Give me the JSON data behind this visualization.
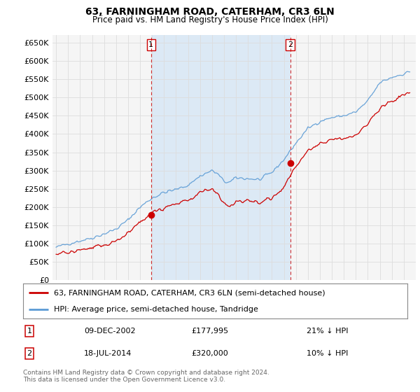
{
  "title": "63, FARNINGHAM ROAD, CATERHAM, CR3 6LN",
  "subtitle": "Price paid vs. HM Land Registry's House Price Index (HPI)",
  "legend_line1": "63, FARNINGHAM ROAD, CATERHAM, CR3 6LN (semi-detached house)",
  "legend_line2": "HPI: Average price, semi-detached house, Tandridge",
  "sale1_label": "1",
  "sale1_date": "09-DEC-2002",
  "sale1_price": "£177,995",
  "sale1_hpi": "21% ↓ HPI",
  "sale2_label": "2",
  "sale2_date": "18-JUL-2014",
  "sale2_price": "£320,000",
  "sale2_hpi": "10% ↓ HPI",
  "footnote": "Contains HM Land Registry data © Crown copyright and database right 2024.\nThis data is licensed under the Open Government Licence v3.0.",
  "price_color": "#cc0000",
  "hpi_color": "#5b9bd5",
  "shade_color": "#dce9f5",
  "background_color": "#ffffff",
  "plot_bg_color": "#f5f5f5",
  "grid_color": "#dddddd",
  "ylim": [
    0,
    670000
  ],
  "yticks": [
    0,
    50000,
    100000,
    150000,
    200000,
    250000,
    300000,
    350000,
    400000,
    450000,
    500000,
    550000,
    600000,
    650000
  ],
  "sale1_x": 2002.92,
  "sale1_y": 177995,
  "sale2_x": 2014.54,
  "sale2_y": 320000,
  "vline1_x": 2002.92,
  "vline2_x": 2014.54,
  "xmin": 1994.7,
  "xmax": 2025.0
}
